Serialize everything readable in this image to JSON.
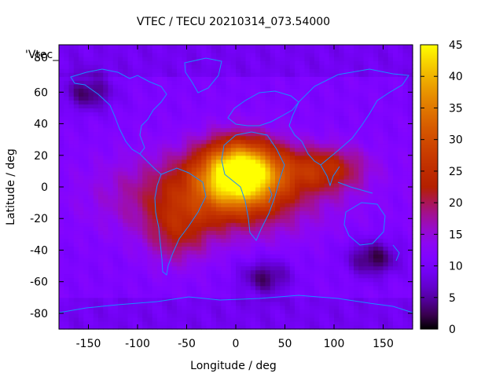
{
  "chart_data": {
    "type": "heatmap",
    "title": "VTEC / TECU 20210314_073.54000",
    "xlabel": "Longitude / deg",
    "ylabel": "Latitude / deg",
    "series_label": "'Vtec_",
    "xlim": [
      -180,
      180
    ],
    "ylim": [
      -90,
      90
    ],
    "x_ticks": [
      -150,
      -100,
      -50,
      0,
      50,
      100,
      150
    ],
    "y_ticks": [
      60,
      40,
      20,
      0,
      -20,
      -40,
      -60,
      -80
    ],
    "y_tick_top_partial": "80",
    "colorbar": {
      "range": [
        0,
        45
      ],
      "ticks": [
        0,
        5,
        10,
        15,
        20,
        25,
        30,
        35,
        40,
        45
      ],
      "colormap": "gnuplot-pm3d (black-purple-red-orange-yellow)"
    },
    "grid": false,
    "features": [
      {
        "name": "main-peak",
        "lon": 5,
        "lat": 10,
        "value": 44
      },
      {
        "name": "equatorial-band",
        "lon": -20,
        "lat": -5,
        "value": 30
      },
      {
        "name": "arabia-india-lobe",
        "lon": 90,
        "lat": 12,
        "value": 26
      },
      {
        "name": "south-america-south",
        "lon": -60,
        "lat": -30,
        "value": 22
      },
      {
        "name": "background",
        "value": 11
      },
      {
        "name": "low-south-atlantic",
        "lon": 30,
        "lat": -57,
        "value": 3
      },
      {
        "name": "low-new-zealand",
        "lon": 140,
        "lat": -45,
        "value": 2
      },
      {
        "name": "low-north-pacific",
        "lon": -150,
        "lat": 60,
        "value": 3
      }
    ]
  }
}
